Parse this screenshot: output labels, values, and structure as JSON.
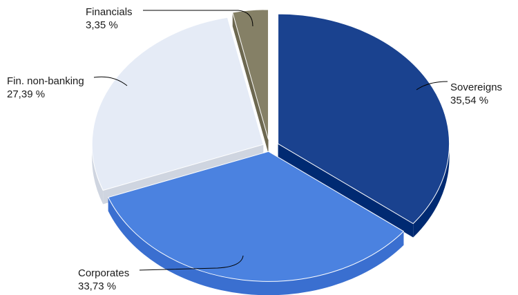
{
  "chart_data": {
    "type": "pie",
    "title": "",
    "three_d": true,
    "exploded": true,
    "slices": [
      {
        "name": "Sovereigns",
        "value": 35.54,
        "value_label": "35,54 %",
        "color": "#1a428f",
        "side_color": "#002a72"
      },
      {
        "name": "Corporates",
        "value": 33.73,
        "value_label": "33,73 %",
        "color": "#4b82e0",
        "side_color": "#3a6fd0"
      },
      {
        "name": "Fin. non-banking",
        "value": 27.39,
        "value_label": "27,39 %",
        "color": "#e5ebf6",
        "side_color": "#cfd5e0"
      },
      {
        "name": "Financials",
        "value": 3.35,
        "value_label": "3,35 %",
        "color": "#858066",
        "side_color": "#6d6850"
      }
    ],
    "legend": "none",
    "data_labels": "outside with leader lines"
  }
}
